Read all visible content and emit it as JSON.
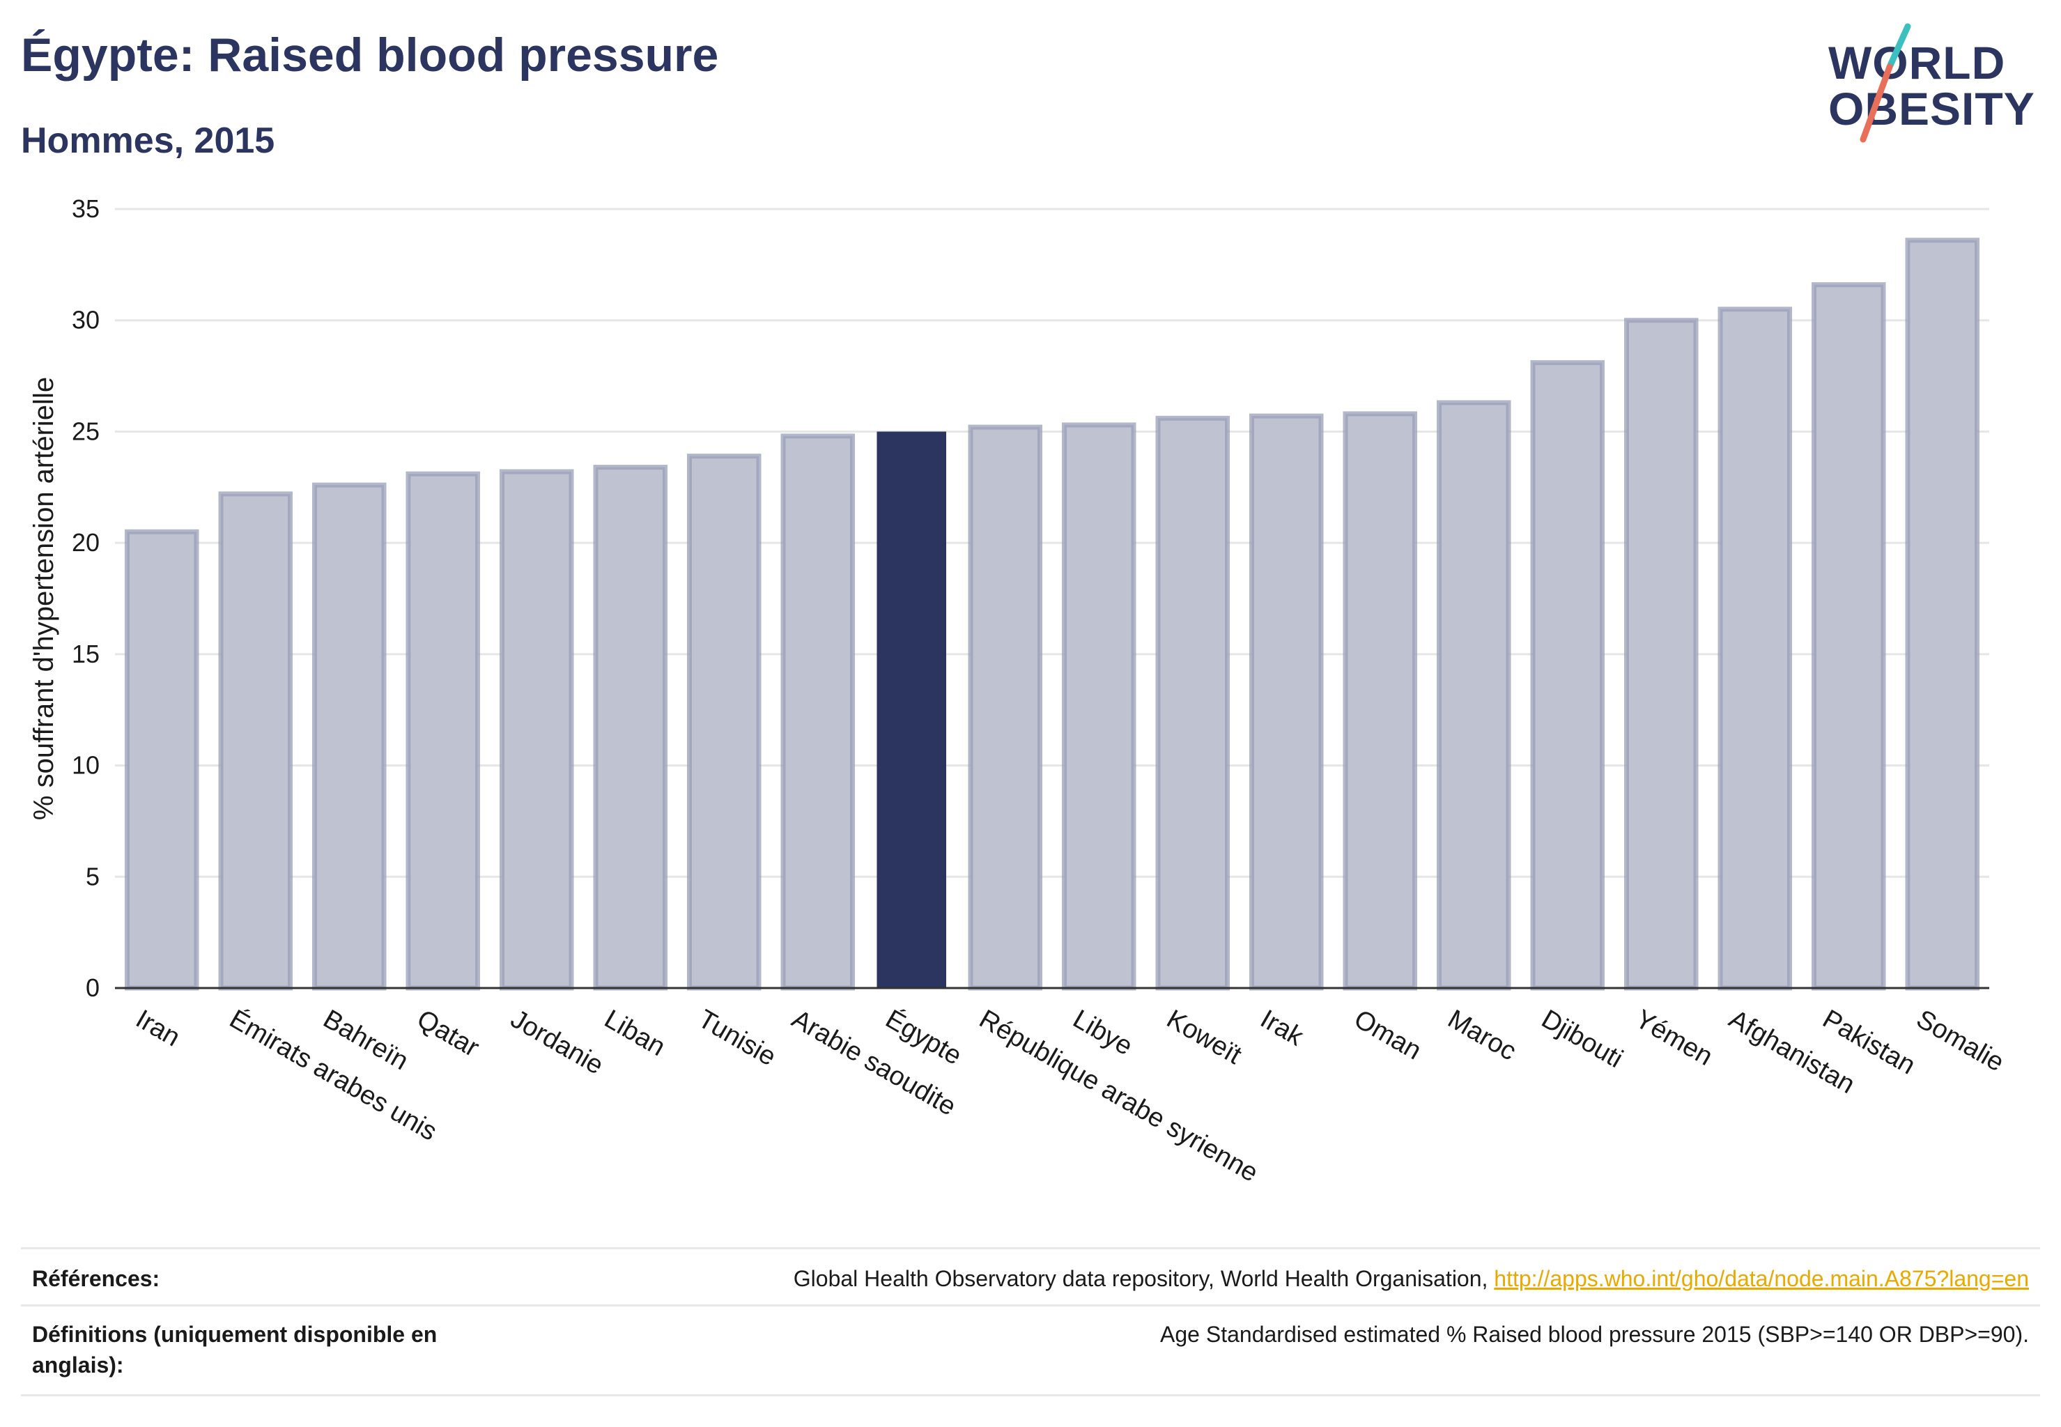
{
  "header": {
    "title": "Égypte: Raised blood pressure",
    "subtitle": "Hommes, 2015"
  },
  "logo": {
    "line1": "WORLD",
    "line2": "OBESITY",
    "slash_colors": [
      "#3bbfbf",
      "#e8705a"
    ],
    "text_color": "#2b3560"
  },
  "colors": {
    "highlight_bar": "#2b3560",
    "bar_fill": "#bfc2d0",
    "bar_stroke": "#9a9fb8",
    "grid": "#e6e6e6",
    "link": "#e8a900"
  },
  "chart_data": {
    "type": "bar",
    "ylabel": "% souffrant d'hypertension artérielle",
    "xlabel": "",
    "ylim": [
      0,
      35
    ],
    "yticks": [
      0,
      5,
      10,
      15,
      20,
      25,
      30,
      35
    ],
    "grid": true,
    "highlight": "Égypte",
    "categories": [
      "Iran",
      "Émirats arabes unis",
      "Bahreïn",
      "Qatar",
      "Jordanie",
      "Liban",
      "Tunisie",
      "Arabie saoudite",
      "Égypte",
      "République arabe syrienne",
      "Libye",
      "Koweït",
      "Irak",
      "Oman",
      "Maroc",
      "Djibouti",
      "Yémen",
      "Afghanistan",
      "Pakistan",
      "Somalie"
    ],
    "values": [
      20.5,
      22.2,
      22.6,
      23.1,
      23.2,
      23.4,
      23.9,
      24.8,
      25.0,
      25.2,
      25.3,
      25.6,
      25.7,
      25.8,
      26.3,
      28.1,
      30.0,
      30.5,
      31.6,
      33.6
    ]
  },
  "table": {
    "references_label": "Références:",
    "references_text": "Global Health Observatory data repository, World Health Organisation, ",
    "references_link": "http://apps.who.int/gho/data/node.main.A875?lang=en",
    "definitions_label": "Définitions (uniquement disponible en anglais):",
    "definitions_text": "Age Standardised estimated % Raised blood pressure 2015 (SBP>=140 OR DBP>=90)."
  }
}
